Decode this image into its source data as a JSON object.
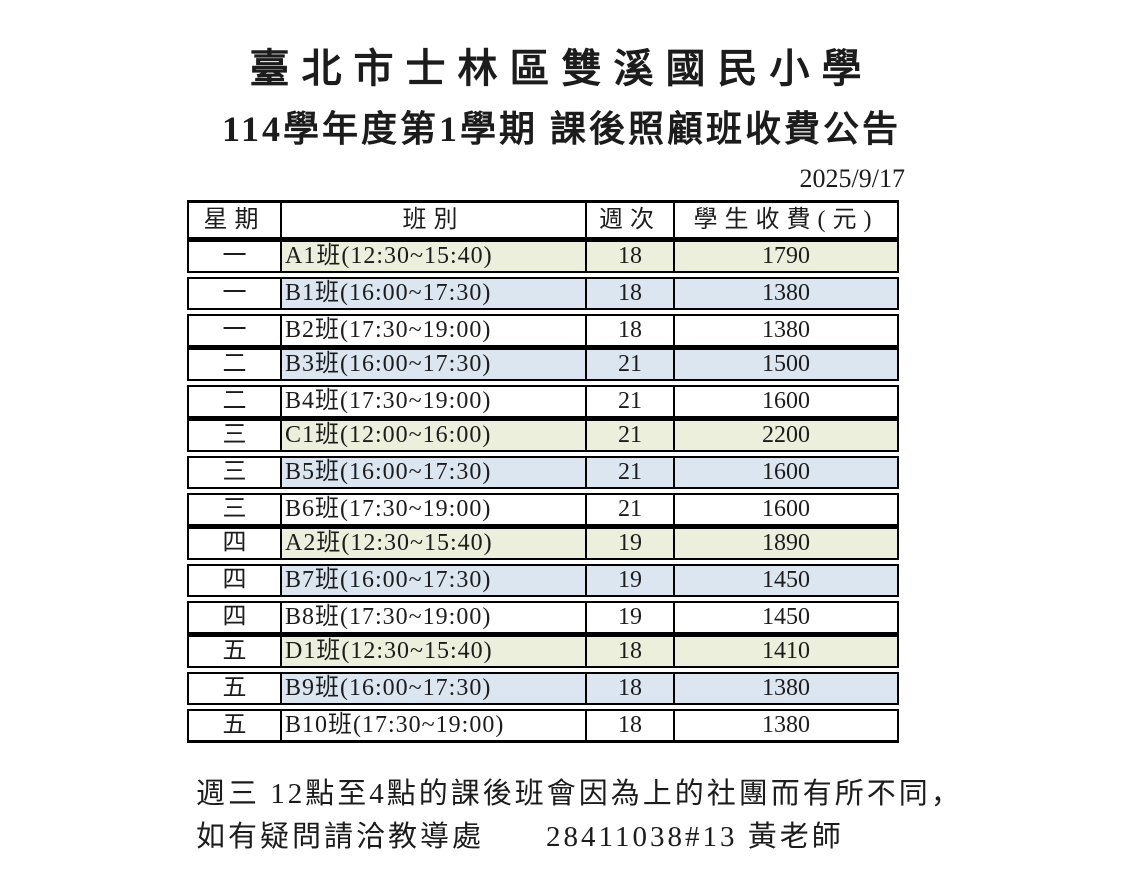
{
  "header": {
    "school": "臺北市士林區雙溪國民小學",
    "title": "114學年度第1學期 課後照顧班收費公告",
    "date": "2025/9/17"
  },
  "table": {
    "headers": [
      "星期",
      "班別",
      "週次",
      "學生收費(元)"
    ],
    "rows": [
      {
        "day": "一",
        "class_name": "A1班(12:30~15:40)",
        "weeks": "18",
        "fee": "1790",
        "color": "green",
        "group_start": true
      },
      {
        "day": "一",
        "class_name": "B1班(16:00~17:30)",
        "weeks": "18",
        "fee": "1380",
        "color": "blue",
        "group_start": false
      },
      {
        "day": "一",
        "class_name": "B2班(17:30~19:00)",
        "weeks": "18",
        "fee": "1380",
        "color": "white",
        "group_start": false
      },
      {
        "day": "二",
        "class_name": "B3班(16:00~17:30)",
        "weeks": "21",
        "fee": "1500",
        "color": "blue",
        "group_start": true
      },
      {
        "day": "二",
        "class_name": "B4班(17:30~19:00)",
        "weeks": "21",
        "fee": "1600",
        "color": "white",
        "group_start": false
      },
      {
        "day": "三",
        "class_name": "C1班(12:00~16:00)",
        "weeks": "21",
        "fee": "2200",
        "color": "green",
        "group_start": true
      },
      {
        "day": "三",
        "class_name": "B5班(16:00~17:30)",
        "weeks": "21",
        "fee": "1600",
        "color": "blue",
        "group_start": false
      },
      {
        "day": "三",
        "class_name": "B6班(17:30~19:00)",
        "weeks": "21",
        "fee": "1600",
        "color": "white",
        "group_start": false
      },
      {
        "day": "四",
        "class_name": "A2班(12:30~15:40)",
        "weeks": "19",
        "fee": "1890",
        "color": "green",
        "group_start": true
      },
      {
        "day": "四",
        "class_name": "B7班(16:00~17:30)",
        "weeks": "19",
        "fee": "1450",
        "color": "blue",
        "group_start": false
      },
      {
        "day": "四",
        "class_name": "B8班(17:30~19:00)",
        "weeks": "19",
        "fee": "1450",
        "color": "white",
        "group_start": false
      },
      {
        "day": "五",
        "class_name": "D1班(12:30~15:40)",
        "weeks": "18",
        "fee": "1410",
        "color": "green",
        "group_start": true
      },
      {
        "day": "五",
        "class_name": "B9班(16:00~17:30)",
        "weeks": "18",
        "fee": "1380",
        "color": "blue",
        "group_start": false
      },
      {
        "day": "五",
        "class_name": "B10班(17:30~19:00)",
        "weeks": "18",
        "fee": "1380",
        "color": "white",
        "group_start": false
      }
    ]
  },
  "footer": {
    "line1": "週三 12點至4點的課後班會因為上的社團而有所不同，",
    "line2_left": "如有疑問請洽教導處",
    "line2_contact": "28411038#13 黃老師"
  },
  "colors": {
    "row_green": "#ebefdb",
    "row_blue": "#dce6f1",
    "border": "#000000",
    "text": "#1c1c1c"
  }
}
